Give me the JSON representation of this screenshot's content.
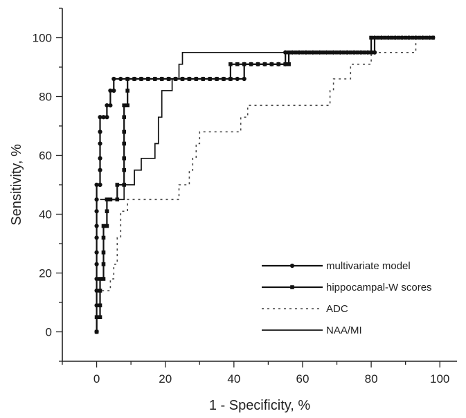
{
  "chart_data": {
    "type": "line",
    "title": "",
    "xlabel": "1 - Specificity, %",
    "ylabel": "Sensitivity, %",
    "xlim": [
      -10,
      105
    ],
    "ylim": [
      -10,
      110
    ],
    "x_ticks": [
      "0",
      "20",
      "40",
      "60",
      "80",
      "100"
    ],
    "y_ticks": [
      "0",
      "20",
      "40",
      "60",
      "80",
      "100"
    ],
    "legend_position": "bottom-right",
    "series": [
      {
        "name": "multivariate model",
        "style": "solid-circle-markers",
        "color": "#111111",
        "points": [
          [
            0,
            0
          ],
          [
            0,
            9
          ],
          [
            0,
            14
          ],
          [
            0,
            18
          ],
          [
            0,
            23
          ],
          [
            0,
            27
          ],
          [
            0,
            32
          ],
          [
            0,
            36
          ],
          [
            0,
            41
          ],
          [
            0,
            45
          ],
          [
            0,
            50
          ],
          [
            1,
            50
          ],
          [
            1,
            55
          ],
          [
            1,
            59
          ],
          [
            1,
            64
          ],
          [
            1,
            68
          ],
          [
            1,
            73
          ],
          [
            2,
            73
          ],
          [
            3,
            73
          ],
          [
            3,
            77
          ],
          [
            4,
            77
          ],
          [
            4,
            82
          ],
          [
            5,
            82
          ],
          [
            5,
            86
          ],
          [
            7,
            86
          ],
          [
            9,
            86
          ],
          [
            11,
            86
          ],
          [
            13,
            86
          ],
          [
            15,
            86
          ],
          [
            17,
            86
          ],
          [
            19,
            86
          ],
          [
            21,
            86
          ],
          [
            23,
            86
          ],
          [
            25,
            86
          ],
          [
            27,
            86
          ],
          [
            29,
            86
          ],
          [
            31,
            86
          ],
          [
            33,
            86
          ],
          [
            35,
            86
          ],
          [
            37,
            86
          ],
          [
            39,
            86
          ],
          [
            41,
            86
          ],
          [
            43,
            86
          ],
          [
            43,
            91
          ],
          [
            45,
            91
          ],
          [
            47,
            91
          ],
          [
            49,
            91
          ],
          [
            51,
            91
          ],
          [
            53,
            91
          ],
          [
            55,
            91
          ],
          [
            55,
            95
          ],
          [
            57,
            95
          ],
          [
            59,
            95
          ],
          [
            61,
            95
          ],
          [
            63,
            95
          ],
          [
            65,
            95
          ],
          [
            67,
            95
          ],
          [
            69,
            95
          ],
          [
            71,
            95
          ],
          [
            73,
            95
          ],
          [
            75,
            95
          ],
          [
            77,
            95
          ],
          [
            79,
            95
          ],
          [
            81,
            95
          ],
          [
            81,
            100
          ],
          [
            83,
            100
          ],
          [
            85,
            100
          ],
          [
            87,
            100
          ],
          [
            89,
            100
          ],
          [
            91,
            100
          ],
          [
            93,
            100
          ],
          [
            95,
            100
          ],
          [
            97,
            100
          ],
          [
            98,
            100
          ]
        ]
      },
      {
        "name": "hippocampal-W scores",
        "style": "solid-square-markers",
        "color": "#111111",
        "points": [
          [
            0,
            0
          ],
          [
            0,
            5
          ],
          [
            1,
            5
          ],
          [
            1,
            9
          ],
          [
            1,
            14
          ],
          [
            1,
            18
          ],
          [
            2,
            18
          ],
          [
            2,
            23
          ],
          [
            2,
            27
          ],
          [
            2,
            32
          ],
          [
            2,
            36
          ],
          [
            3,
            36
          ],
          [
            3,
            41
          ],
          [
            3,
            45
          ],
          [
            4,
            45
          ],
          [
            6,
            45
          ],
          [
            6,
            50
          ],
          [
            8,
            50
          ],
          [
            8,
            55
          ],
          [
            8,
            59
          ],
          [
            8,
            64
          ],
          [
            8,
            68
          ],
          [
            8,
            73
          ],
          [
            8,
            77
          ],
          [
            9,
            77
          ],
          [
            9,
            82
          ],
          [
            9,
            86
          ],
          [
            11,
            86
          ],
          [
            13,
            86
          ],
          [
            15,
            86
          ],
          [
            17,
            86
          ],
          [
            19,
            86
          ],
          [
            21,
            86
          ],
          [
            23,
            86
          ],
          [
            25,
            86
          ],
          [
            27,
            86
          ],
          [
            29,
            86
          ],
          [
            31,
            86
          ],
          [
            33,
            86
          ],
          [
            35,
            86
          ],
          [
            37,
            86
          ],
          [
            39,
            86
          ],
          [
            39,
            91
          ],
          [
            41,
            91
          ],
          [
            43,
            91
          ],
          [
            45,
            91
          ],
          [
            47,
            91
          ],
          [
            49,
            91
          ],
          [
            51,
            91
          ],
          [
            53,
            91
          ],
          [
            55,
            91
          ],
          [
            56,
            91
          ],
          [
            56,
            95
          ],
          [
            58,
            95
          ],
          [
            60,
            95
          ],
          [
            62,
            95
          ],
          [
            64,
            95
          ],
          [
            66,
            95
          ],
          [
            68,
            95
          ],
          [
            70,
            95
          ],
          [
            72,
            95
          ],
          [
            74,
            95
          ],
          [
            76,
            95
          ],
          [
            78,
            95
          ],
          [
            80,
            95
          ],
          [
            80,
            100
          ],
          [
            82,
            100
          ],
          [
            84,
            100
          ],
          [
            86,
            100
          ],
          [
            88,
            100
          ],
          [
            90,
            100
          ],
          [
            92,
            100
          ],
          [
            94,
            100
          ],
          [
            96,
            100
          ],
          [
            98,
            100
          ]
        ]
      },
      {
        "name": "ADC",
        "style": "dotted",
        "color": "#444444",
        "points": [
          [
            1,
            9
          ],
          [
            1,
            14
          ],
          [
            4,
            14
          ],
          [
            4,
            18
          ],
          [
            5,
            18
          ],
          [
            5,
            23
          ],
          [
            6,
            23
          ],
          [
            6,
            27
          ],
          [
            6,
            32
          ],
          [
            7,
            32
          ],
          [
            7,
            36
          ],
          [
            7,
            41
          ],
          [
            9,
            41
          ],
          [
            9,
            45
          ],
          [
            22,
            45
          ],
          [
            24,
            45
          ],
          [
            24,
            50
          ],
          [
            27,
            50
          ],
          [
            27,
            55
          ],
          [
            28,
            55
          ],
          [
            28,
            59
          ],
          [
            29,
            59
          ],
          [
            29,
            64
          ],
          [
            30,
            64
          ],
          [
            30,
            68
          ],
          [
            41,
            68
          ],
          [
            42,
            68
          ],
          [
            42,
            73
          ],
          [
            44,
            73
          ],
          [
            44,
            77
          ],
          [
            68,
            77
          ],
          [
            68,
            82
          ],
          [
            69,
            82
          ],
          [
            69,
            86
          ],
          [
            74,
            86
          ],
          [
            74,
            91
          ],
          [
            80,
            91
          ],
          [
            80,
            95
          ],
          [
            93,
            95
          ],
          [
            93,
            100
          ],
          [
            98,
            100
          ]
        ]
      },
      {
        "name": "NAA/MI",
        "style": "solid",
        "color": "#111111",
        "points": [
          [
            1,
            45
          ],
          [
            8,
            45
          ],
          [
            8,
            50
          ],
          [
            11,
            50
          ],
          [
            11,
            55
          ],
          [
            13,
            55
          ],
          [
            13,
            59
          ],
          [
            15,
            59
          ],
          [
            17,
            59
          ],
          [
            17,
            64
          ],
          [
            18,
            64
          ],
          [
            18,
            73
          ],
          [
            19,
            73
          ],
          [
            19,
            82
          ],
          [
            22,
            82
          ],
          [
            22,
            86
          ],
          [
            24,
            86
          ],
          [
            24,
            91
          ],
          [
            25,
            91
          ],
          [
            25,
            95
          ],
          [
            38,
            95
          ],
          [
            54,
            95
          ],
          [
            80,
            95
          ],
          [
            80,
            100
          ],
          [
            98,
            100
          ]
        ]
      }
    ]
  }
}
